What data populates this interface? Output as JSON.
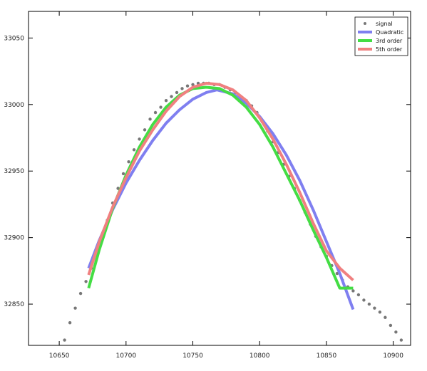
{
  "chart_data": {
    "type": "line",
    "title": "",
    "xlabel": "",
    "ylabel": "",
    "xlim": [
      10627,
      10913
    ],
    "ylim": [
      32819,
      33070
    ],
    "x_ticks": [
      10650,
      10700,
      10750,
      10800,
      10850,
      10900
    ],
    "y_ticks": [
      32850,
      32900,
      32950,
      33000,
      33050
    ],
    "x_tick_labels": [
      "10650",
      "10700",
      "10750",
      "10800",
      "10850",
      "10900"
    ],
    "y_tick_labels": [
      "32850",
      "32900",
      "32950",
      "33000",
      "33050"
    ],
    "grid": false,
    "legend_position": "top-right",
    "colors": {
      "signal": "#777777",
      "quadratic": "#7f7ff0",
      "third_order": "#44dd44",
      "fifth_order": "#f08080"
    },
    "series": [
      {
        "name": "signal",
        "kind": "points",
        "color": "#777777",
        "x": [
          10654,
          10658,
          10662,
          10666,
          10670,
          10674,
          10678,
          10682,
          10686,
          10690,
          10694,
          10698,
          10702,
          10706,
          10710,
          10714,
          10718,
          10722,
          10726,
          10730,
          10734,
          10738,
          10742,
          10746,
          10750,
          10754,
          10758,
          10762,
          10766,
          10770,
          10774,
          10778,
          10782,
          10786,
          10790,
          10794,
          10798,
          10802,
          10806,
          10810,
          10814,
          10818,
          10822,
          10826,
          10830,
          10834,
          10838,
          10842,
          10846,
          10850,
          10854,
          10858,
          10862,
          10866,
          10870,
          10874,
          10878,
          10882,
          10886,
          10890,
          10894,
          10898,
          10902,
          10906
        ],
        "y": [
          32823,
          32836,
          32847,
          32858,
          32867,
          32877,
          32890,
          32902,
          32913,
          32926,
          32937,
          32948,
          32957,
          32966,
          32974,
          32981,
          32989,
          32994,
          32998,
          33003,
          33006,
          33009,
          33012,
          33014,
          33015,
          33016,
          33016,
          33016,
          33015,
          33015,
          33013,
          33011,
          33009,
          33006,
          33003,
          32999,
          32994,
          32987,
          32980,
          32972,
          32964,
          32955,
          32946,
          32937,
          32928,
          32919,
          32910,
          32901,
          32893,
          32886,
          32879,
          32873,
          32868,
          32863,
          32860,
          32857,
          32853,
          32850,
          32847,
          32844,
          32840,
          32834,
          32829,
          32823
        ]
      },
      {
        "name": "Quadratic",
        "kind": "line",
        "color": "#7f7ff0",
        "x": [
          10672,
          10680,
          10690,
          10700,
          10710,
          10720,
          10730,
          10740,
          10750,
          10760,
          10768,
          10780,
          10790,
          10800,
          10810,
          10820,
          10830,
          10840,
          10850,
          10860,
          10870
        ],
        "y": [
          32877,
          32898,
          32921,
          32941,
          32958,
          32973,
          32986,
          32996,
          33004,
          33009,
          33011,
          33008,
          33001,
          32991,
          32978,
          32962,
          32943,
          32921,
          32897,
          32873,
          32846
        ]
      },
      {
        "name": "3rd order",
        "kind": "line",
        "color": "#44dd44",
        "x": [
          10672,
          10680,
          10690,
          10700,
          10710,
          10720,
          10730,
          10740,
          10750,
          10760,
          10770,
          10780,
          10790,
          10800,
          10810,
          10820,
          10830,
          10840,
          10850,
          10860,
          10870
        ],
        "y": [
          32862,
          32891,
          32922,
          32947,
          32968,
          32985,
          32998,
          33007,
          33012,
          33013,
          33012,
          33007,
          32998,
          32985,
          32968,
          32948,
          32928,
          32906,
          32885,
          32862,
          32862
        ]
      },
      {
        "name": "5th order",
        "kind": "line",
        "color": "#f08080",
        "x": [
          10672,
          10680,
          10690,
          10700,
          10710,
          10720,
          10730,
          10740,
          10750,
          10760,
          10770,
          10780,
          10790,
          10800,
          10810,
          10820,
          10830,
          10840,
          10850,
          10860,
          10870
        ],
        "y": [
          32872,
          32897,
          32923,
          32945,
          32965,
          32981,
          32995,
          33006,
          33013,
          33016,
          33015,
          33011,
          33003,
          32990,
          32974,
          32955,
          32934,
          32911,
          32890,
          32877,
          32868
        ]
      }
    ]
  }
}
